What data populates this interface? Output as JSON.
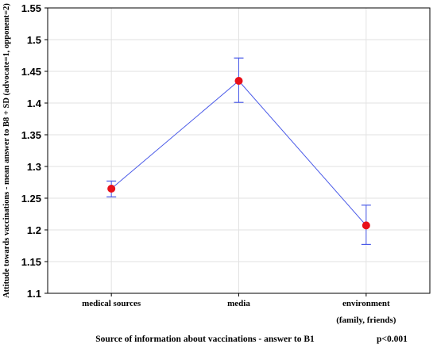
{
  "chart_data": {
    "type": "line",
    "categories": [
      "medical sources",
      "media",
      "environment"
    ],
    "category_sublabels": [
      "",
      "",
      "(family, friends)"
    ],
    "values": [
      1.265,
      1.435,
      1.207
    ],
    "error_high": [
      1.277,
      1.471,
      1.239
    ],
    "error_low": [
      1.252,
      1.401,
      1.177
    ],
    "ylim": [
      1.1,
      1.55
    ],
    "yticks": [
      "1.1",
      "1.15",
      "1.2",
      "1.25",
      "1.3",
      "1.35",
      "1.4",
      "1.45",
      "1.5",
      "1.55"
    ],
    "ylabel": "Attitude towards vaccinations - mean answer to B8 + SD (advocate=1, opponent=2)",
    "xlabel": "Source of information about vaccinations - answer to B1",
    "annotation": "p<0.001",
    "grid": true,
    "line_color": "#4a5ae8",
    "marker_color": "#e8101a",
    "errorbar_color": "#4a5ae8"
  }
}
